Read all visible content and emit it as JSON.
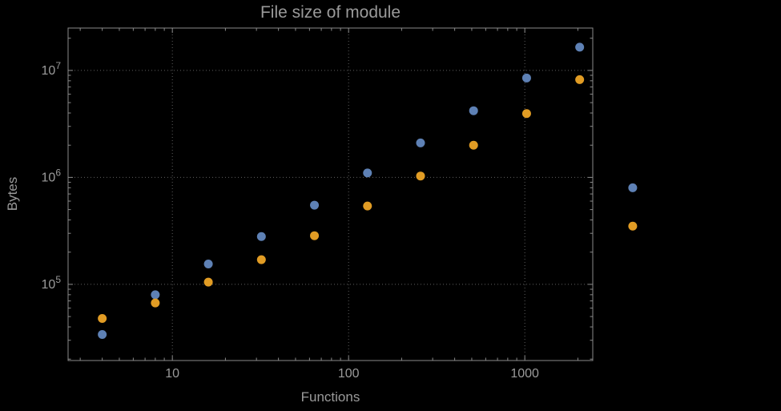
{
  "chart_data": {
    "type": "scatter",
    "title": "File size of module",
    "xlabel": "Functions",
    "ylabel": "Bytes",
    "x_scale": "log",
    "y_scale": "log",
    "xlim": [
      2.56,
      2430
    ],
    "ylim": [
      19400,
      24900000
    ],
    "grid": "dotted-at-major-ticks",
    "legend": "none",
    "x_ticks": {
      "values": [
        10,
        100,
        1000
      ],
      "labels": [
        "10",
        "100",
        "1000"
      ]
    },
    "y_ticks": {
      "values": [
        100000,
        1000000,
        10000000
      ],
      "labels": [
        "10^5",
        "10^6",
        "10^7"
      ]
    },
    "series": [
      {
        "name": "blue",
        "color": "#5e81b5",
        "points": [
          [
            4,
            34000
          ],
          [
            8,
            80000
          ],
          [
            16,
            155000
          ],
          [
            32,
            280000
          ],
          [
            64,
            550000
          ],
          [
            128,
            1100000
          ],
          [
            256,
            2100000
          ],
          [
            512,
            4200000
          ],
          [
            1024,
            8500000
          ],
          [
            2048,
            16500000
          ],
          [
            4096,
            800000
          ]
        ]
      },
      {
        "name": "orange",
        "color": "#e19c24",
        "points": [
          [
            4,
            48000
          ],
          [
            8,
            67000
          ],
          [
            16,
            105000
          ],
          [
            32,
            170000
          ],
          [
            64,
            285000
          ],
          [
            128,
            540000
          ],
          [
            256,
            1030000
          ],
          [
            512,
            2000000
          ],
          [
            1024,
            3950000
          ],
          [
            2048,
            8200000
          ],
          [
            4096,
            350000
          ]
        ]
      }
    ],
    "style": {
      "background": "#000000",
      "frame_color": "#8a8a8a",
      "grid_color": "#5f5f5f",
      "text_color": "#9a9a9a",
      "marker_radius": 5.5
    }
  }
}
